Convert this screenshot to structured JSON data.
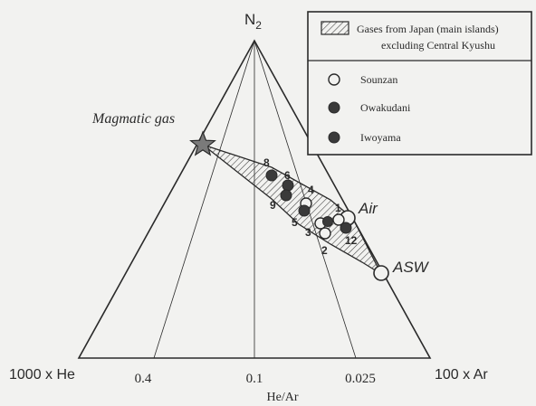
{
  "colors": {
    "ink": "#2a2a2a",
    "paper": "#f2f2f0",
    "hatch": "#3a3a3a"
  },
  "apex_labels": {
    "top": {
      "main": "N",
      "sub": "2"
    },
    "left": "1000 x He",
    "right": "100 x Ar"
  },
  "he_ar_ticks": [
    "0.4",
    "0.1",
    "0.025"
  ],
  "bottom_axis_label": "He/Ar",
  "legend": {
    "hatch_entry": {
      "line1": "Gases from Japan (main islands)",
      "line2": "excluding Central Kyushu"
    },
    "entries": [
      {
        "label": "Sounzan",
        "marker": "open-circle"
      },
      {
        "label": "Owakudani",
        "marker": "filled-circle"
      },
      {
        "label": "Iwoyama",
        "marker": "filled-circle"
      }
    ]
  },
  "annotations": {
    "magmatic_gas": "Magmatic gas",
    "air": "Air",
    "asw": "ASW"
  },
  "endmembers": [
    {
      "label": "Magmatic gas",
      "marker": "star"
    },
    {
      "label": "Air",
      "marker": "open-circle"
    },
    {
      "label": "ASW",
      "marker": "open-circle"
    }
  ],
  "sample_numbers": [
    "1",
    "2",
    "3",
    "4",
    "5",
    "6",
    "8",
    "9",
    "12"
  ]
}
